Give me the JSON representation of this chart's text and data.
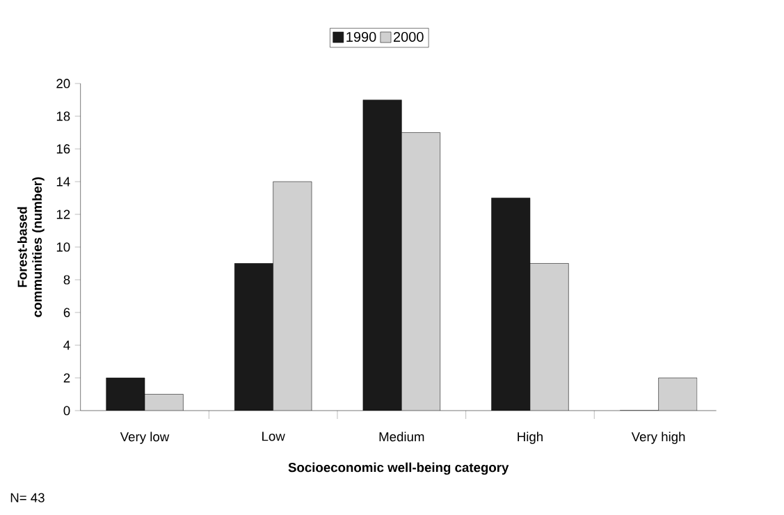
{
  "chart_data": {
    "type": "bar",
    "xlabel": "Socioeconomic well-being category",
    "ylabel": "Forest-based communities (number)",
    "categories": [
      "Very low",
      "Low",
      "Medium",
      "High",
      "Very high"
    ],
    "series": [
      {
        "name": "1990",
        "color": "#1a1a1a",
        "values": [
          2,
          9,
          19,
          13,
          0
        ]
      },
      {
        "name": "2000",
        "color": "#d0d0d0",
        "values": [
          1,
          14,
          17,
          9,
          2
        ]
      }
    ],
    "ylim": [
      0,
      20
    ],
    "yticks": [
      0,
      2,
      4,
      6,
      8,
      10,
      12,
      14,
      16,
      18,
      20
    ],
    "grid": false,
    "legend": "top",
    "annotations": [
      "N= 43"
    ]
  }
}
